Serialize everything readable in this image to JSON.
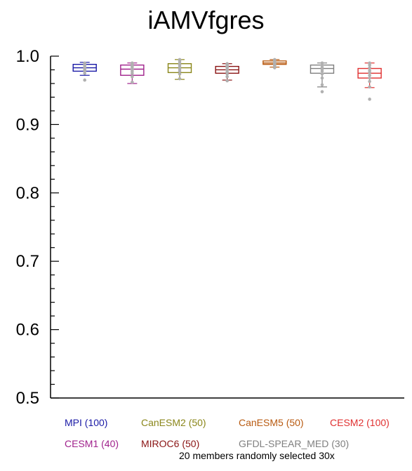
{
  "chart_data": {
    "type": "box",
    "title": "iAMVfgres",
    "xlabel": "",
    "ylabel": "",
    "ylim": [
      0.5,
      1.0
    ],
    "yticks": [
      0.5,
      0.6,
      0.7,
      0.8,
      0.9,
      1.0
    ],
    "ytick_labels": [
      "0.5",
      "0.6",
      "0.7",
      "0.8",
      "0.9",
      "1.0"
    ],
    "grid": false,
    "note": "20 members randomly selected 30x",
    "series": [
      {
        "name": "MPI",
        "legend": "MPI (100)",
        "color": "#1a1aa6",
        "whisker_low": 0.972,
        "q1": 0.978,
        "median": 0.983,
        "q3": 0.988,
        "whisker_high": 0.991,
        "points": [
          0.965,
          0.975,
          0.979,
          0.981,
          0.983,
          0.984,
          0.986,
          0.988,
          0.99
        ]
      },
      {
        "name": "CESM1",
        "legend": "CESM1 (40)",
        "color": "#a0228c",
        "whisker_low": 0.96,
        "q1": 0.972,
        "median": 0.981,
        "q3": 0.987,
        "whisker_high": 0.99,
        "points": [
          0.962,
          0.97,
          0.975,
          0.978,
          0.981,
          0.984,
          0.986,
          0.988,
          0.99
        ]
      },
      {
        "name": "CanESM2",
        "legend": "CanESM2 (50)",
        "color": "#8a861a",
        "whisker_low": 0.966,
        "q1": 0.976,
        "median": 0.983,
        "q3": 0.989,
        "whisker_high": 0.995,
        "points": [
          0.967,
          0.974,
          0.978,
          0.981,
          0.984,
          0.987,
          0.99,
          0.993,
          0.995
        ]
      },
      {
        "name": "MIROC6",
        "legend": "MIROC6 (50)",
        "color": "#8a1414",
        "whisker_low": 0.965,
        "q1": 0.975,
        "median": 0.98,
        "q3": 0.985,
        "whisker_high": 0.989,
        "points": [
          0.964,
          0.97,
          0.974,
          0.977,
          0.98,
          0.983,
          0.985,
          0.987,
          0.989
        ]
      },
      {
        "name": "CanESM5",
        "legend": "CanESM5 (50)",
        "color": "#b85a10",
        "whisker_low": 0.984,
        "q1": 0.988,
        "median": 0.99,
        "q3": 0.993,
        "whisker_high": 0.995,
        "points": [
          0.983,
          0.986,
          0.988,
          0.99,
          0.991,
          0.993,
          0.994,
          0.995
        ]
      },
      {
        "name": "GFDL-SPEAR_MED",
        "legend": "GFDL-SPEAR_MED (30)",
        "color": "#808080",
        "whisker_low": 0.955,
        "q1": 0.975,
        "median": 0.982,
        "q3": 0.987,
        "whisker_high": 0.99,
        "points": [
          0.948,
          0.958,
          0.968,
          0.974,
          0.978,
          0.981,
          0.984,
          0.987,
          0.99
        ]
      },
      {
        "name": "CESM2",
        "legend": "CESM2 (100)",
        "color": "#e03030",
        "whisker_low": 0.954,
        "q1": 0.968,
        "median": 0.975,
        "q3": 0.982,
        "whisker_high": 0.99,
        "points": [
          0.937,
          0.955,
          0.963,
          0.968,
          0.972,
          0.976,
          0.979,
          0.983,
          0.987,
          0.99
        ]
      }
    ],
    "point_color": "#b0b0b0"
  }
}
